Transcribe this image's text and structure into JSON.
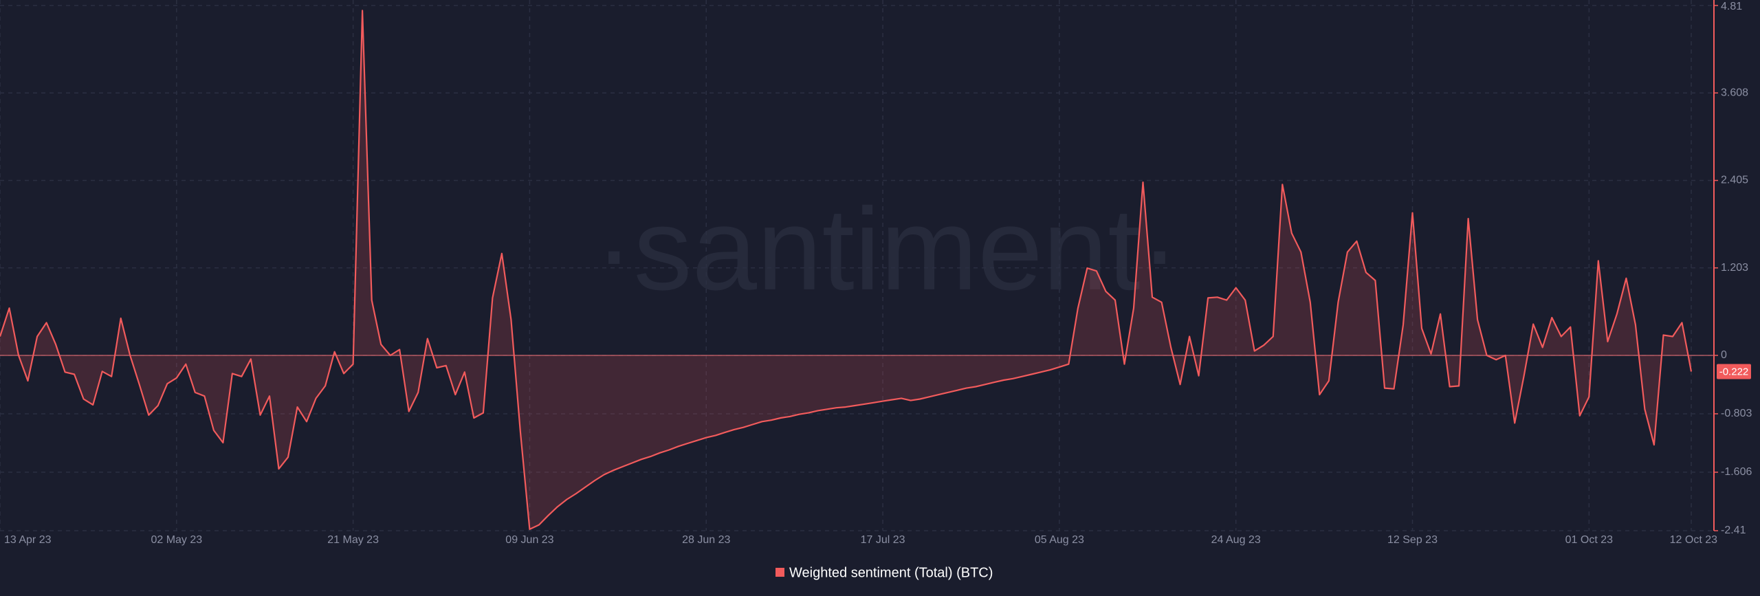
{
  "chart_data": {
    "type": "line",
    "watermark": "·santiment·",
    "x": [
      "13 Apr 23",
      "14 Apr 23",
      "15 Apr 23",
      "16 Apr 23",
      "17 Apr 23",
      "18 Apr 23",
      "19 Apr 23",
      "20 Apr 23",
      "21 Apr 23",
      "22 Apr 23",
      "23 Apr 23",
      "24 Apr 23",
      "25 Apr 23",
      "26 Apr 23",
      "27 Apr 23",
      "28 Apr 23",
      "29 Apr 23",
      "30 Apr 23",
      "01 May 23",
      "02 May 23",
      "03 May 23",
      "04 May 23",
      "05 May 23",
      "06 May 23",
      "07 May 23",
      "08 May 23",
      "09 May 23",
      "10 May 23",
      "11 May 23",
      "12 May 23",
      "13 May 23",
      "14 May 23",
      "15 May 23",
      "16 May 23",
      "17 May 23",
      "18 May 23",
      "19 May 23",
      "20 May 23",
      "21 May 23",
      "22 May 23",
      "23 May 23",
      "24 May 23",
      "25 May 23",
      "26 May 23",
      "27 May 23",
      "28 May 23",
      "29 May 23",
      "30 May 23",
      "31 May 23",
      "01 Jun 23",
      "02 Jun 23",
      "03 Jun 23",
      "04 Jun 23",
      "05 Jun 23",
      "06 Jun 23",
      "07 Jun 23",
      "08 Jun 23",
      "09 Jun 23",
      "10 Jun 23",
      "11 Jun 23",
      "12 Jun 23",
      "13 Jun 23",
      "14 Jun 23",
      "15 Jun 23",
      "16 Jun 23",
      "17 Jun 23",
      "18 Jun 23",
      "19 Jun 23",
      "20 Jun 23",
      "21 Jun 23",
      "22 Jun 23",
      "23 Jun 23",
      "24 Jun 23",
      "25 Jun 23",
      "26 Jun 23",
      "27 Jun 23",
      "28 Jun 23",
      "29 Jun 23",
      "30 Jun 23",
      "01 Jul 23",
      "02 Jul 23",
      "03 Jul 23",
      "04 Jul 23",
      "05 Jul 23",
      "06 Jul 23",
      "07 Jul 23",
      "08 Jul 23",
      "09 Jul 23",
      "10 Jul 23",
      "11 Jul 23",
      "12 Jul 23",
      "13 Jul 23",
      "14 Jul 23",
      "15 Jul 23",
      "16 Jul 23",
      "17 Jul 23",
      "18 Jul 23",
      "19 Jul 23",
      "20 Jul 23",
      "21 Jul 23",
      "22 Jul 23",
      "23 Jul 23",
      "24 Jul 23",
      "25 Jul 23",
      "26 Jul 23",
      "27 Jul 23",
      "28 Jul 23",
      "29 Jul 23",
      "30 Jul 23",
      "31 Jul 23",
      "01 Aug 23",
      "02 Aug 23",
      "03 Aug 23",
      "04 Aug 23",
      "05 Aug 23",
      "06 Aug 23",
      "07 Aug 23",
      "08 Aug 23",
      "09 Aug 23",
      "10 Aug 23",
      "11 Aug 23",
      "12 Aug 23",
      "13 Aug 23",
      "14 Aug 23",
      "15 Aug 23",
      "16 Aug 23",
      "17 Aug 23",
      "18 Aug 23",
      "19 Aug 23",
      "20 Aug 23",
      "21 Aug 23",
      "22 Aug 23",
      "23 Aug 23",
      "24 Aug 23",
      "25 Aug 23",
      "26 Aug 23",
      "27 Aug 23",
      "28 Aug 23",
      "29 Aug 23",
      "30 Aug 23",
      "31 Aug 23",
      "01 Sep 23",
      "02 Sep 23",
      "03 Sep 23",
      "04 Sep 23",
      "05 Sep 23",
      "06 Sep 23",
      "07 Sep 23",
      "08 Sep 23",
      "09 Sep 23",
      "10 Sep 23",
      "11 Sep 23",
      "12 Sep 23",
      "13 Sep 23",
      "14 Sep 23",
      "15 Sep 23",
      "16 Sep 23",
      "17 Sep 23",
      "18 Sep 23",
      "19 Sep 23",
      "20 Sep 23",
      "21 Sep 23",
      "22 Sep 23",
      "23 Sep 23",
      "24 Sep 23",
      "25 Sep 23",
      "26 Sep 23",
      "27 Sep 23",
      "28 Sep 23",
      "29 Sep 23",
      "30 Sep 23",
      "01 Oct 23",
      "02 Oct 23",
      "03 Oct 23",
      "04 Oct 23",
      "05 Oct 23",
      "06 Oct 23",
      "07 Oct 23",
      "08 Oct 23",
      "09 Oct 23",
      "10 Oct 23",
      "11 Oct 23",
      "12 Oct 23"
    ],
    "xticks": [
      "13 Apr 23",
      "02 May 23",
      "21 May 23",
      "09 Jun 23",
      "28 Jun 23",
      "17 Jul 23",
      "05 Aug 23",
      "24 Aug 23",
      "12 Sep 23",
      "01 Oct 23",
      "12 Oct 23"
    ],
    "series": [
      {
        "name": "Weighted sentiment (Total) (BTC)",
        "color": "#f25b5c",
        "values": [
          0.26,
          0.65,
          0,
          -0.35,
          0.26,
          0.45,
          0.15,
          -0.23,
          -0.26,
          -0.6,
          -0.68,
          -0.22,
          -0.29,
          0.51,
          0,
          -0.4,
          -0.82,
          -0.69,
          -0.39,
          -0.31,
          -0.12,
          -0.51,
          -0.56,
          -1.03,
          -1.2,
          -0.25,
          -0.29,
          -0.05,
          -0.82,
          -0.56,
          -1.56,
          -1.4,
          -0.71,
          -0.91,
          -0.59,
          -0.42,
          0.05,
          -0.25,
          -0.12,
          4.74,
          0.76,
          0.15,
          0,
          0.08,
          -0.77,
          -0.51,
          0.23,
          -0.17,
          -0.14,
          -0.54,
          -0.23,
          -0.86,
          -0.79,
          0.79,
          1.4,
          0.49,
          -1.05,
          -2.39,
          -2.33,
          -2.2,
          -2.08,
          -1.98,
          -1.9,
          -1.81,
          -1.72,
          -1.64,
          -1.58,
          -1.53,
          -1.48,
          -1.43,
          -1.39,
          -1.34,
          -1.3,
          -1.25,
          -1.21,
          -1.17,
          -1.13,
          -1.1,
          -1.06,
          -1.02,
          -0.99,
          -0.95,
          -0.91,
          -0.89,
          -0.86,
          -0.84,
          -0.81,
          -0.79,
          -0.76,
          -0.74,
          -0.72,
          -0.71,
          -0.69,
          -0.67,
          -0.65,
          -0.63,
          -0.61,
          -0.59,
          -0.62,
          -0.6,
          -0.57,
          -0.54,
          -0.51,
          -0.48,
          -0.45,
          -0.43,
          -0.4,
          -0.37,
          -0.34,
          -0.32,
          -0.29,
          -0.26,
          -0.23,
          -0.2,
          -0.16,
          -0.12,
          0.65,
          1.2,
          1.16,
          0.88,
          0.76,
          -0.12,
          0.65,
          2.38,
          0.8,
          0.73,
          0.11,
          -0.4,
          0.26,
          -0.28,
          0.79,
          0.8,
          0.76,
          0.93,
          0.76,
          0.06,
          0.14,
          0.26,
          2.35,
          1.68,
          1.42,
          0.73,
          -0.54,
          -0.35,
          0.73,
          1.42,
          1.57,
          1.14,
          1.03,
          -0.45,
          -0.46,
          0.42,
          1.96,
          0.37,
          0.02,
          0.57,
          -0.43,
          -0.42,
          1.88,
          0.49,
          0,
          -0.06,
          0,
          -0.93,
          -0.28,
          0.43,
          0.11,
          0.52,
          0.26,
          0.39,
          -0.83,
          -0.57,
          1.3,
          0.19,
          0.57,
          1.06,
          0.42,
          -0.74,
          -1.23,
          0.28,
          0.26,
          0.45,
          -0.222
        ]
      }
    ],
    "ylim": [
      -2.41,
      4.81
    ],
    "yticks": [
      4.81,
      3.608,
      2.405,
      1.203,
      0,
      -0.803,
      -1.606,
      -2.41
    ],
    "grid": true
  }
}
